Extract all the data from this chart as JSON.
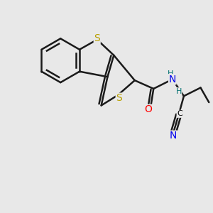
{
  "bg_color": "#e8e8e8",
  "atom_colors": {
    "C": "#000000",
    "S": "#b8a000",
    "O": "#ff0000",
    "N": "#0000ee",
    "H": "#007070"
  },
  "bond_color": "#1a1a1a",
  "bond_width": 1.8,
  "font_size_atom": 10,
  "font_size_small": 8
}
